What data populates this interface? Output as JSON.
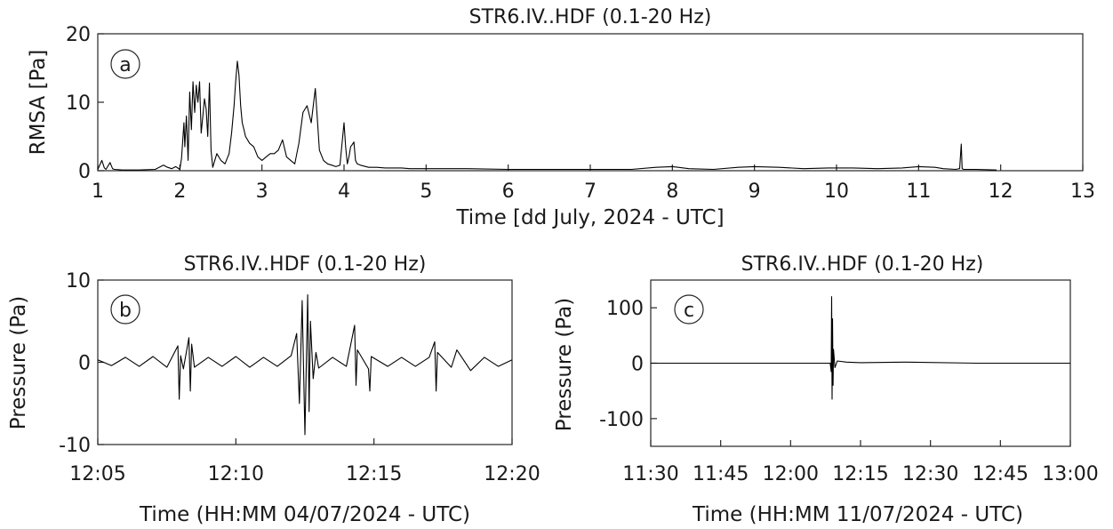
{
  "colors": {
    "trace": "#000000",
    "axes": "#262626",
    "background": "#ffffff"
  },
  "chart_data": [
    {
      "id": "a",
      "type": "line",
      "panel_label": "a",
      "title": "STR6.IV..HDF (0.1-20 Hz)",
      "xlabel": "Time [dd July, 2024 - UTC]",
      "ylabel": "RMSA [Pa]",
      "xlim": [
        1,
        13
      ],
      "ylim": [
        0,
        20
      ],
      "xticks": [
        "1",
        "2",
        "3",
        "4",
        "5",
        "6",
        "7",
        "8",
        "9",
        "10",
        "11",
        "12",
        "13"
      ],
      "yticks": [
        "0",
        "10",
        "20"
      ],
      "series": [
        {
          "x": [
            1.0,
            1.05,
            1.08,
            1.1,
            1.15,
            1.18,
            1.2,
            1.3,
            1.5,
            1.7,
            1.8,
            1.85,
            1.9,
            1.95,
            2.0,
            2.02,
            2.05,
            2.06,
            2.08,
            2.1,
            2.12,
            2.14,
            2.16,
            2.18,
            2.2,
            2.22,
            2.24,
            2.26,
            2.28,
            2.3,
            2.32,
            2.34,
            2.36,
            2.38,
            2.4,
            2.45,
            2.5,
            2.55,
            2.6,
            2.63,
            2.66,
            2.68,
            2.7,
            2.72,
            2.74,
            2.76,
            2.78,
            2.8,
            2.85,
            2.9,
            2.95,
            3.0,
            3.05,
            3.1,
            3.15,
            3.2,
            3.25,
            3.3,
            3.35,
            3.4,
            3.45,
            3.5,
            3.55,
            3.6,
            3.65,
            3.7,
            3.75,
            3.8,
            3.85,
            3.9,
            3.95,
            4.0,
            4.02,
            4.04,
            4.06,
            4.08,
            4.1,
            4.12,
            4.14,
            4.16,
            4.2,
            4.3,
            4.4,
            4.5,
            4.6,
            4.7,
            4.8,
            5.0,
            5.5,
            6.0,
            6.5,
            7.0,
            7.5,
            7.8,
            8.0,
            8.2,
            8.5,
            8.8,
            9.0,
            9.3,
            9.6,
            9.9,
            10.2,
            10.5,
            10.8,
            11.0,
            11.2,
            11.3,
            11.45,
            11.5,
            11.52,
            11.53,
            11.55,
            11.7,
            11.95
          ],
          "y": [
            0.2,
            1.5,
            0.4,
            0.2,
            1.2,
            0.3,
            0.2,
            0.1,
            0.1,
            0.2,
            0.8,
            0.5,
            0.3,
            0.6,
            0.2,
            1.8,
            7.0,
            3.5,
            8.0,
            1.5,
            11.5,
            6.0,
            13.0,
            8.5,
            12.5,
            10.0,
            13.0,
            5.5,
            8.0,
            10.5,
            9.0,
            5.0,
            12.8,
            3.0,
            0.5,
            2.5,
            1.5,
            1.0,
            2.5,
            5.5,
            9.5,
            13.0,
            16.0,
            14.0,
            9.5,
            7.0,
            6.0,
            5.0,
            4.0,
            3.5,
            2.0,
            1.5,
            2.0,
            2.5,
            2.5,
            3.0,
            4.5,
            2.0,
            1.5,
            1.0,
            4.0,
            8.5,
            9.5,
            7.0,
            12.0,
            3.0,
            1.5,
            1.0,
            0.8,
            0.6,
            0.8,
            7.0,
            3.5,
            1.0,
            2.0,
            3.5,
            3.8,
            4.2,
            1.5,
            1.0,
            0.8,
            0.5,
            0.5,
            0.4,
            0.4,
            0.4,
            0.3,
            0.3,
            0.3,
            0.2,
            0.2,
            0.2,
            0.2,
            0.5,
            0.6,
            0.3,
            0.2,
            0.5,
            0.6,
            0.5,
            0.3,
            0.4,
            0.4,
            0.3,
            0.4,
            0.6,
            0.5,
            0.3,
            0.2,
            0.3,
            3.9,
            0.3,
            0.2,
            0.2,
            0.1
          ]
        }
      ]
    },
    {
      "id": "b",
      "type": "line",
      "panel_label": "b",
      "title": "STR6.IV..HDF  (0.1-20  Hz)",
      "xlabel": "Time  (HH:MM  04/07/2024 - UTC)",
      "ylabel": "Pressure (Pa)",
      "xlim": [
        0,
        15
      ],
      "ylim": [
        -10,
        10
      ],
      "xticks": [
        "12:05",
        "12:10",
        "12:15",
        "12:20"
      ],
      "yticks": [
        "10",
        "0",
        "-10"
      ],
      "series": [
        {
          "x": [
            0.0,
            0.5,
            1.0,
            1.5,
            2.0,
            2.5,
            2.9,
            2.95,
            3.0,
            3.1,
            3.3,
            3.35,
            3.4,
            3.5,
            4.0,
            4.5,
            5.0,
            5.5,
            6.0,
            6.5,
            7.0,
            7.2,
            7.3,
            7.4,
            7.5,
            7.6,
            7.65,
            7.7,
            7.8,
            7.9,
            8.0,
            8.5,
            9.0,
            9.3,
            9.35,
            9.4,
            9.8,
            9.85,
            9.9,
            10.5,
            11.0,
            11.5,
            12.0,
            12.2,
            12.25,
            12.3,
            12.8,
            13.0,
            13.5,
            14.0,
            14.5,
            15.0
          ],
          "y": [
            0.3,
            -0.4,
            0.6,
            -0.5,
            0.7,
            -0.6,
            2.0,
            -4.5,
            0.8,
            -0.8,
            3.0,
            -3.5,
            2.2,
            -0.6,
            0.6,
            -0.5,
            0.7,
            -0.6,
            0.6,
            -0.5,
            0.8,
            3.5,
            -5.0,
            7.5,
            -8.8,
            8.2,
            -6.0,
            5.0,
            -2.0,
            1.2,
            -0.7,
            0.6,
            -0.5,
            4.5,
            -2.8,
            1.5,
            -0.8,
            -3.5,
            0.7,
            -0.5,
            0.6,
            -0.5,
            0.6,
            2.5,
            -3.5,
            1.2,
            -0.6,
            1.5,
            -1.0,
            0.6,
            -0.5,
            0.3
          ]
        }
      ]
    },
    {
      "id": "c",
      "type": "line",
      "panel_label": "c",
      "title": "STR6.IV..HDF  (0.1-20  Hz)",
      "xlabel": "Time  (HH:MM  11/07/2024 - UTC)",
      "ylabel": "Pressure (Pa)",
      "xlim": [
        0,
        90
      ],
      "ylim": [
        -150,
        150
      ],
      "xticks": [
        "11:30",
        "11:45",
        "12:00",
        "12:15",
        "12:30",
        "12:45",
        "13:00"
      ],
      "yticks": [
        "100",
        "0",
        "-100"
      ],
      "series": [
        {
          "x": [
            0,
            10,
            20,
            30,
            38.5,
            38.7,
            38.8,
            38.9,
            39.0,
            39.1,
            39.2,
            39.5,
            40,
            42,
            45,
            55,
            70,
            90
          ],
          "y": [
            0,
            0,
            0,
            0,
            0,
            -15,
            120,
            -65,
            80,
            -40,
            25,
            -8,
            4,
            2,
            1,
            2,
            0,
            0
          ]
        }
      ]
    }
  ]
}
